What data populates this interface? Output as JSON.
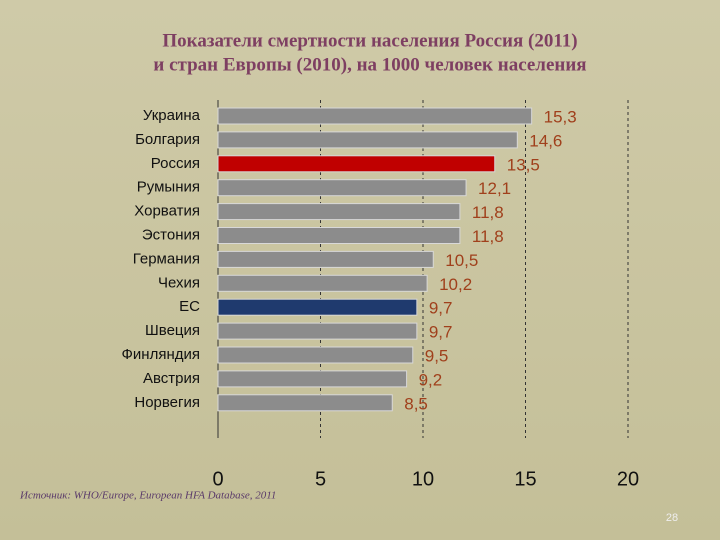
{
  "chart_data": {
    "type": "barh",
    "title": "Показатели смертности населения Россия (2011)",
    "subtitle": "и стран Европы (2010),  на 1000 человек населения",
    "categories": [
      "Украина",
      "Болгария",
      "Россия",
      "Румыния",
      "Хорватия",
      "Эстония",
      "Германия",
      "Чехия",
      "ЕС",
      "Швеция",
      "Финляндия",
      "Австрия",
      "Норвегия"
    ],
    "values": [
      15.3,
      14.6,
      13.5,
      12.1,
      11.8,
      11.8,
      10.5,
      10.2,
      9.7,
      9.7,
      9.5,
      9.2,
      8.5
    ],
    "value_labels": [
      "15,3",
      "14,6",
      "13,5",
      "12,1",
      "11,8",
      "11,8",
      "10,5",
      "10,2",
      "9,7",
      "9,7",
      "9,5",
      "9,2",
      "8,5"
    ],
    "colors": [
      "#8c8c8c",
      "#8c8c8c",
      "#c00000",
      "#8c8c8c",
      "#8c8c8c",
      "#8c8c8c",
      "#8c8c8c",
      "#8c8c8c",
      "#1f3a6e",
      "#8c8c8c",
      "#8c8c8c",
      "#8c8c8c",
      "#8c8c8c"
    ],
    "xlim": [
      0,
      20
    ],
    "xticks": [
      0,
      5,
      10,
      15,
      20
    ],
    "grid": true,
    "source": "Источник: WHO/Europe, European HFA Database, 2011",
    "page_number": "28"
  }
}
